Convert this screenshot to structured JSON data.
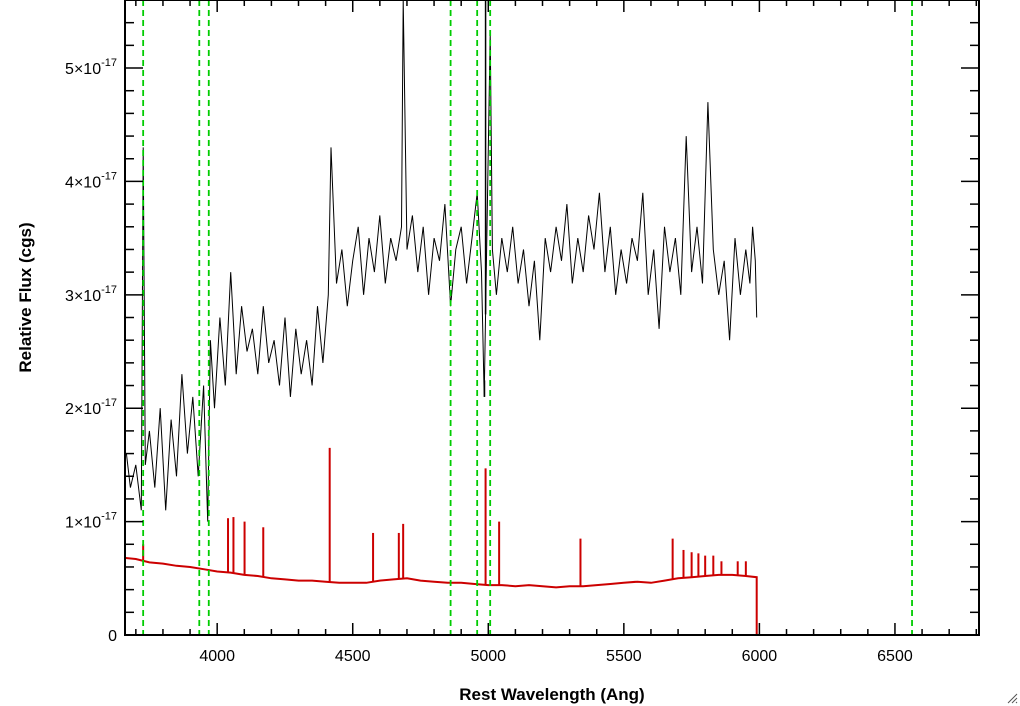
{
  "chart_data": {
    "type": "line",
    "title": "",
    "xlabel": "Rest Wavelength (Ang)",
    "ylabel": "Relative Flux (cgs)",
    "xlim": [
      3660,
      6810
    ],
    "ylim": [
      0,
      5.6e-17
    ],
    "x_ticks": [
      4000,
      4500,
      5000,
      5500,
      6000,
      6500
    ],
    "x_tick_labels": [
      "4000",
      "4500",
      "5000",
      "5500",
      "6000",
      "6500"
    ],
    "y_ticks": [
      0,
      1e-17,
      2e-17,
      3e-17,
      4e-17,
      5e-17
    ],
    "y_tick_labels": [
      {
        "mantissa": "0",
        "exponent": ""
      },
      {
        "mantissa": "1×10",
        "exponent": "-17"
      },
      {
        "mantissa": "2×10",
        "exponent": "-17"
      },
      {
        "mantissa": "3×10",
        "exponent": "-17"
      },
      {
        "mantissa": "4×10",
        "exponent": "-17"
      },
      {
        "mantissa": "5×10",
        "exponent": "-17"
      }
    ],
    "grid": false,
    "legend": "none",
    "series": [
      {
        "color": "#000000",
        "kind": "observed-spectrum",
        "x": [
          3665,
          3680,
          3700,
          3720,
          3727,
          3735,
          3750,
          3770,
          3790,
          3810,
          3830,
          3850,
          3870,
          3890,
          3910,
          3930,
          3950,
          3965,
          3975,
          3990,
          4010,
          4030,
          4050,
          4070,
          4090,
          4110,
          4130,
          4150,
          4170,
          4190,
          4210,
          4230,
          4250,
          4270,
          4290,
          4310,
          4330,
          4350,
          4370,
          4390,
          4410,
          4420,
          4440,
          4460,
          4480,
          4500,
          4520,
          4540,
          4560,
          4580,
          4600,
          4620,
          4640,
          4660,
          4680,
          4686,
          4700,
          4720,
          4740,
          4760,
          4780,
          4800,
          4820,
          4840,
          4861,
          4880,
          4900,
          4920,
          4940,
          4959,
          4975,
          4985,
          5007,
          5015,
          5030,
          5050,
          5070,
          5090,
          5110,
          5130,
          5150,
          5170,
          5190,
          5210,
          5230,
          5250,
          5270,
          5290,
          5310,
          5330,
          5350,
          5370,
          5390,
          5410,
          5430,
          5450,
          5470,
          5490,
          5510,
          5530,
          5550,
          5570,
          5590,
          5610,
          5630,
          5650,
          5670,
          5690,
          5710,
          5730,
          5750,
          5770,
          5790,
          5810,
          5830,
          5850,
          5870,
          5890,
          5910,
          5930,
          5950,
          5965,
          5975,
          5985,
          5990
        ],
        "y": [
          1.6e-17,
          1.3e-17,
          1.5e-17,
          1.1e-17,
          4.3e-17,
          1.5e-17,
          1.8e-17,
          1.3e-17,
          2e-17,
          1.1e-17,
          1.9e-17,
          1.4e-17,
          2.3e-17,
          1.6e-17,
          2.1e-17,
          1.4e-17,
          2.2e-17,
          1e-17,
          2.6e-17,
          2e-17,
          2.8e-17,
          2.2e-17,
          3.2e-17,
          2.3e-17,
          2.9e-17,
          2.5e-17,
          2.7e-17,
          2.3e-17,
          2.9e-17,
          2.4e-17,
          2.6e-17,
          2.2e-17,
          2.8e-17,
          2.1e-17,
          2.7e-17,
          2.3e-17,
          2.6e-17,
          2.2e-17,
          2.9e-17,
          2.4e-17,
          3e-17,
          4.3e-17,
          3.1e-17,
          3.4e-17,
          2.9e-17,
          3.3e-17,
          3.6e-17,
          3e-17,
          3.5e-17,
          3.2e-17,
          3.7e-17,
          3.1e-17,
          3.5e-17,
          3.3e-17,
          3.6e-17,
          6e-17,
          3.4e-17,
          3.7e-17,
          3.2e-17,
          3.6e-17,
          3e-17,
          3.5e-17,
          3.3e-17,
          3.8e-17,
          2.9e-17,
          3.4e-17,
          3.6e-17,
          3.1e-17,
          3.5e-17,
          3.9e-17,
          3.2e-17,
          2.1e-17,
          5.3e-17,
          3.4e-17,
          3e-17,
          3.5e-17,
          3.2e-17,
          3.6e-17,
          3.1e-17,
          3.4e-17,
          2.9e-17,
          3.3e-17,
          2.6e-17,
          3.5e-17,
          3.2e-17,
          3.6e-17,
          3.3e-17,
          3.8e-17,
          3.1e-17,
          3.5e-17,
          3.2e-17,
          3.7e-17,
          3.4e-17,
          3.9e-17,
          3.2e-17,
          3.6e-17,
          3e-17,
          3.4e-17,
          3.1e-17,
          3.5e-17,
          3.3e-17,
          3.9e-17,
          3e-17,
          3.4e-17,
          2.7e-17,
          3.6e-17,
          3.2e-17,
          3.5e-17,
          3e-17,
          4.4e-17,
          3.2e-17,
          3.6e-17,
          3.1e-17,
          4.7e-17,
          3.4e-17,
          3e-17,
          3.3e-17,
          2.6e-17,
          3.5e-17,
          3e-17,
          3.4e-17,
          3.1e-17,
          3.6e-17,
          3.3e-17,
          2.8e-17
        ],
        "spikes": [
          {
            "x": 4686,
            "y": 6e-17
          },
          {
            "x": 4986,
            "y": 2.1e-17
          },
          {
            "x": 4990,
            "y": 6e-17
          },
          {
            "x": 5007,
            "y": 5.3e-17
          }
        ]
      },
      {
        "color": "#cc0000",
        "kind": "model-spectrum",
        "x": [
          3660,
          3700,
          3750,
          3800,
          3850,
          3900,
          3950,
          4000,
          4050,
          4100,
          4150,
          4200,
          4250,
          4300,
          4350,
          4400,
          4450,
          4500,
          4550,
          4600,
          4650,
          4700,
          4750,
          4800,
          4850,
          4900,
          4950,
          5000,
          5050,
          5100,
          5150,
          5200,
          5250,
          5300,
          5350,
          5400,
          5450,
          5500,
          5550,
          5600,
          5650,
          5700,
          5750,
          5800,
          5850,
          5900,
          5950,
          5990
        ],
        "y": [
          6.8e-18,
          6.7e-18,
          6.4e-18,
          6.3e-18,
          6.1e-18,
          6e-18,
          5.8e-18,
          5.6e-18,
          5.5e-18,
          5.3e-18,
          5.2e-18,
          5e-18,
          4.9e-18,
          4.8e-18,
          4.8e-18,
          4.7e-18,
          4.6e-18,
          4.6e-18,
          4.6e-18,
          4.8e-18,
          4.9e-18,
          5e-18,
          4.8e-18,
          4.7e-18,
          4.6e-18,
          4.6e-18,
          4.5e-18,
          4.4e-18,
          4.4e-18,
          4.3e-18,
          4.4e-18,
          4.3e-18,
          4.2e-18,
          4.3e-18,
          4.3e-18,
          4.4e-18,
          4.5e-18,
          4.6e-18,
          4.7e-18,
          4.6e-18,
          4.8e-18,
          5e-18,
          5.1e-18,
          5.2e-18,
          5.3e-18,
          5.3e-18,
          5.2e-18,
          5.1e-18
        ],
        "spikes": [
          {
            "x": 3727,
            "y": 8e-18
          },
          {
            "x": 4040,
            "y": 1.03e-17
          },
          {
            "x": 4060,
            "y": 1.04e-17
          },
          {
            "x": 4101,
            "y": 1e-17
          },
          {
            "x": 4170,
            "y": 9.5e-18
          },
          {
            "x": 4415,
            "y": 1.65e-17
          },
          {
            "x": 4575,
            "y": 9e-18
          },
          {
            "x": 4670,
            "y": 9e-18
          },
          {
            "x": 4686,
            "y": 9.8e-18
          },
          {
            "x": 4990,
            "y": 1.47e-17
          },
          {
            "x": 5040,
            "y": 1e-17
          },
          {
            "x": 5340,
            "y": 8.5e-18
          },
          {
            "x": 5680,
            "y": 8.5e-18
          },
          {
            "x": 5720,
            "y": 7.5e-18
          },
          {
            "x": 5750,
            "y": 7.3e-18
          },
          {
            "x": 5775,
            "y": 7.2e-18
          },
          {
            "x": 5800,
            "y": 7e-18
          },
          {
            "x": 5830,
            "y": 7e-18
          },
          {
            "x": 5860,
            "y": 6.5e-18
          },
          {
            "x": 5920,
            "y": 6.5e-18
          },
          {
            "x": 5950,
            "y": 6.5e-18
          }
        ],
        "tail_after": 5990,
        "tail_y": 0,
        "tail_end": 6810
      }
    ],
    "reference_lines": {
      "color": "#00cc00",
      "style": "dashed",
      "x": [
        3727,
        3934,
        3969,
        4861,
        4959,
        5007,
        6563
      ]
    }
  },
  "ui": {
    "resize_grip_icon": "resize-grip-icon"
  }
}
